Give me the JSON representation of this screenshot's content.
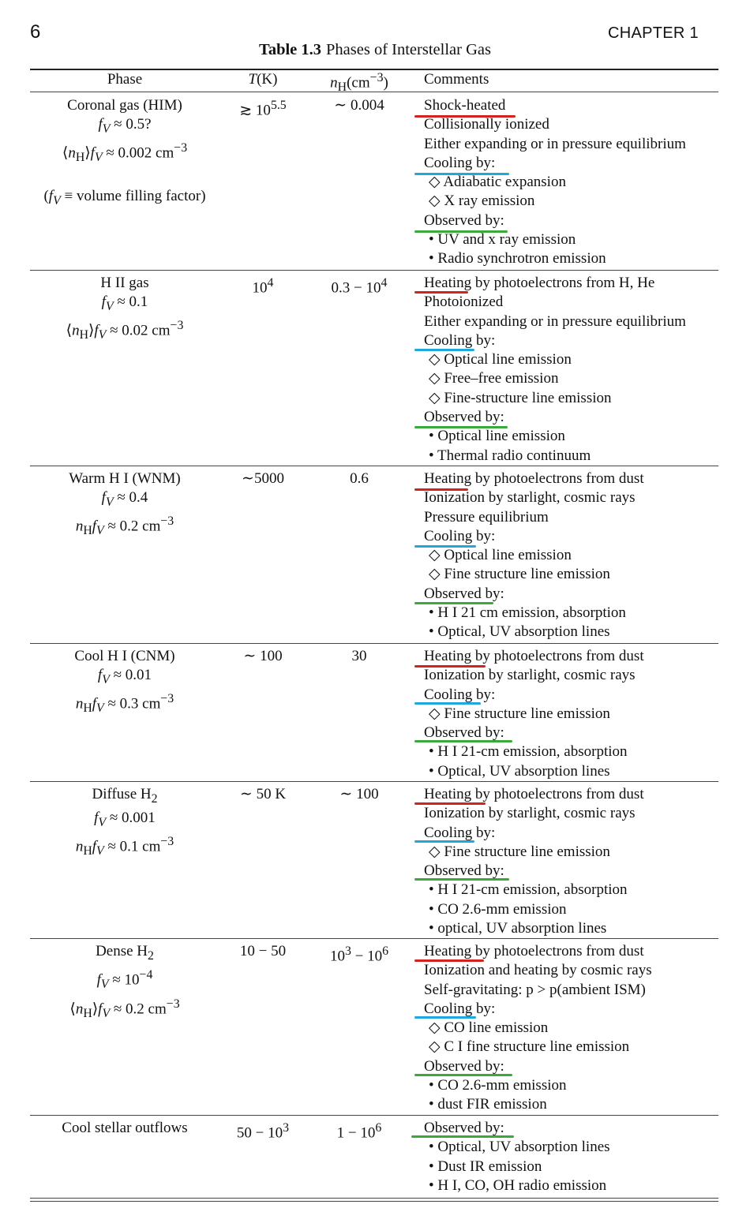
{
  "page": {
    "number": "6",
    "chapter": "CHAPTER 1"
  },
  "table": {
    "label": "Table 1.3",
    "title": "Phases of Interstellar Gas",
    "columns": {
      "phase": "Phase",
      "temperature": "T(K)",
      "density": "nH(cm−3)",
      "comments": "Comments"
    },
    "rows": [
      {
        "phase": [
          "Coronal gas (HIM)",
          "fV ≈ 0.5?",
          "⟨nH⟩fV ≈ 0.002 cm−3",
          "",
          "(fV ≡ volume filling factor)"
        ],
        "temperature": "≳ 105.5",
        "density": "∼ 0.004",
        "comments": [
          "Shock-heated",
          "Collisionally ionized",
          "Either expanding or in pressure equilibrium",
          "Cooling by:",
          "◇ Adiabatic expansion",
          "◇ X ray emission",
          "Observed by:",
          "• UV and x ray emission",
          "• Radio synchrotron emission"
        ]
      },
      {
        "phase": [
          "H II gas",
          "fV ≈ 0.1",
          "⟨nH⟩fV ≈ 0.02 cm−3"
        ],
        "temperature": "104",
        "density": "0.3 − 104",
        "comments": [
          "Heating by photoelectrons from H, He",
          "Photoionized",
          "Either expanding or in pressure equilibrium",
          "Cooling by:",
          "◇ Optical line emission",
          "◇ Free–free emission",
          "◇ Fine-structure line emission",
          "Observed by:",
          "• Optical line emission",
          "• Thermal radio continuum"
        ]
      },
      {
        "phase": [
          "Warm H I (WNM)",
          "fV ≈ 0.4",
          "nHfV ≈ 0.2 cm−3"
        ],
        "temperature": "∼5000",
        "density": "0.6",
        "comments": [
          "Heating by photoelectrons from dust",
          "Ionization by starlight, cosmic rays",
          "Pressure equilibrium",
          "Cooling by:",
          "◇ Optical line emission",
          "◇ Fine structure line emission",
          "Observed by:",
          "• H I 21 cm emission, absorption",
          "• Optical, UV absorption lines"
        ]
      },
      {
        "phase": [
          "Cool H I (CNM)",
          "fV ≈ 0.01",
          "nHfV ≈ 0.3 cm−3"
        ],
        "temperature": "∼ 100",
        "density": "30",
        "comments": [
          "Heating by photoelectrons from dust",
          "Ionization by starlight, cosmic rays",
          "Cooling by:",
          "◇ Fine structure line emission",
          "Observed by:",
          "• H I 21-cm emission, absorption",
          "• Optical, UV absorption lines"
        ]
      },
      {
        "phase": [
          "Diffuse H2",
          "fV ≈ 0.001",
          "nHfV ≈ 0.1 cm−3"
        ],
        "temperature": "∼ 50 K",
        "density": "∼ 100",
        "comments": [
          "Heating by photoelectrons from dust",
          "Ionization by starlight, cosmic rays",
          "Cooling by:",
          "◇ Fine structure line emission",
          "Observed by:",
          "• H I 21-cm emission, absorption",
          "• CO 2.6-mm emission",
          "• optical, UV absorption lines"
        ]
      },
      {
        "phase": [
          "Dense H2",
          "fV ≈ 10−4",
          "⟨nH⟩fV ≈ 0.2 cm−3"
        ],
        "temperature": "10 − 50",
        "density": "103 − 106",
        "comments": [
          "Heating by photoelectrons from dust",
          "Ionization and heating by cosmic rays",
          "Self-gravitating: p > p(ambient ISM)",
          "Cooling by:",
          "◇ CO line emission",
          "◇ C I fine structure line emission",
          "Observed by:",
          "• CO 2.6-mm emission",
          "• dust FIR emission"
        ]
      },
      {
        "phase": [
          "Cool stellar outflows"
        ],
        "temperature": "50 − 103",
        "density": "1 − 106",
        "comments": [
          "Observed by:",
          "• Optical, UV absorption lines",
          "• Dust IR emission",
          "• H I, CO, OH radio emission"
        ]
      }
    ]
  },
  "annotation_colors": {
    "heating": "#d2231e",
    "cooling": "#1fa8de",
    "observed": "#3aa83a"
  }
}
